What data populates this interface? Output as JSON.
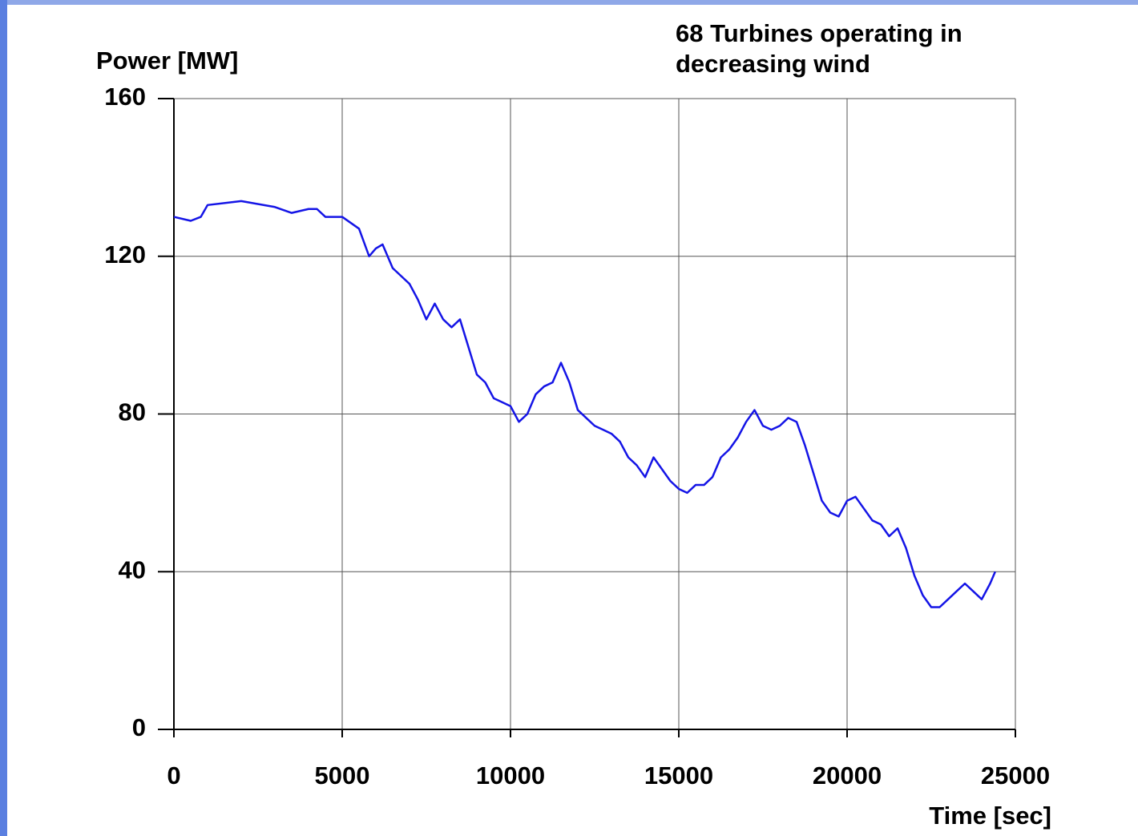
{
  "chart_data": {
    "type": "line",
    "title": [
      "68 Turbines operating in",
      "decreasing wind"
    ],
    "y_label": "Power [MW]",
    "x_label": "Time [sec]",
    "xlim": [
      0,
      25000
    ],
    "xticks": [
      0,
      5000,
      10000,
      15000,
      20000,
      25000
    ],
    "ylim": [
      0,
      160
    ],
    "yticks": [
      0,
      40,
      80,
      120,
      160
    ],
    "grid": true,
    "series": [
      {
        "color": "#1414e6",
        "x": [
          0,
          500,
          800,
          1000,
          2000,
          3000,
          3500,
          4000,
          4250,
          4500,
          5000,
          5500,
          5800,
          6000,
          6200,
          6500,
          7000,
          7250,
          7500,
          7750,
          8000,
          8250,
          8500,
          8750,
          9000,
          9250,
          9500,
          9750,
          10000,
          10250,
          10500,
          10750,
          11000,
          11250,
          11500,
          11750,
          12000,
          12250,
          12500,
          12750,
          13000,
          13250,
          13500,
          13750,
          14000,
          14250,
          14500,
          14750,
          15000,
          15250,
          15500,
          15750,
          16000,
          16250,
          16500,
          16750,
          17000,
          17250,
          17500,
          17750,
          18000,
          18250,
          18500,
          18750,
          19000,
          19250,
          19500,
          19750,
          20000,
          20250,
          20500,
          20750,
          21000,
          21250,
          21500,
          21750,
          22000,
          22250,
          22500,
          22750,
          23000,
          23250,
          23500,
          23750,
          24000,
          24250,
          24400
        ],
        "values": [
          130,
          129,
          130,
          133,
          134,
          132.5,
          131,
          132,
          132,
          130,
          130,
          127,
          120,
          122,
          123,
          117,
          113,
          109,
          104,
          108,
          104,
          102,
          104,
          97,
          90,
          88,
          84,
          83,
          82,
          78,
          80,
          85,
          87,
          88,
          93,
          88,
          81,
          79,
          77,
          76,
          75,
          73,
          69,
          67,
          64,
          69,
          66,
          63,
          61,
          60,
          62,
          62,
          64,
          69,
          71,
          74,
          78,
          81,
          77,
          76,
          77,
          79,
          78,
          72,
          65,
          58,
          55,
          54,
          58,
          59,
          56,
          53,
          52,
          49,
          51,
          46,
          39,
          34,
          31,
          31,
          33,
          35,
          37,
          35,
          33,
          37,
          40
        ]
      }
    ]
  }
}
